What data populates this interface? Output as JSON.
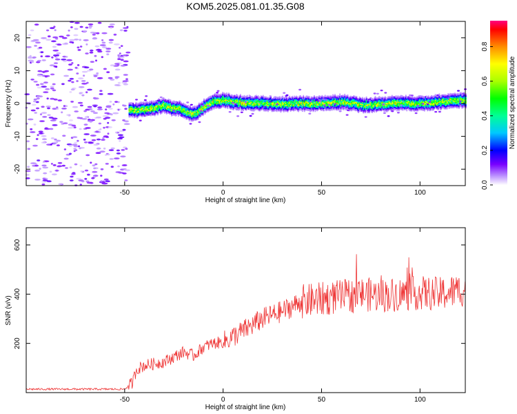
{
  "figure": {
    "title": "KOM5.2025.081.01.35.G08"
  },
  "chart_data": [
    {
      "type": "heatmap",
      "xlabel": "Height of straight line (km)",
      "ylabel": "Frequency (Hz)",
      "xlim": [
        -100,
        123
      ],
      "ylim": [
        -25,
        25
      ],
      "x_ticks": [
        -50,
        0,
        50,
        100
      ],
      "y_ticks": [
        -20,
        -10,
        0,
        10,
        20
      ],
      "signal_start_x": -48,
      "ridge_center_hz": [
        [
          -48,
          -2
        ],
        [
          -42,
          -2
        ],
        [
          -36,
          -1.5
        ],
        [
          -30,
          -0.5
        ],
        [
          -26,
          -1.5
        ],
        [
          -22,
          -1.5
        ],
        [
          -18,
          -3
        ],
        [
          -14,
          -3
        ],
        [
          -10,
          -1
        ],
        [
          -5,
          0.5
        ],
        [
          0,
          1
        ],
        [
          5,
          0.5
        ],
        [
          10,
          0.2
        ],
        [
          20,
          0
        ],
        [
          30,
          -0.2
        ],
        [
          40,
          0
        ],
        [
          50,
          0
        ],
        [
          60,
          0.5
        ],
        [
          70,
          -0.5
        ],
        [
          80,
          -0.2
        ],
        [
          90,
          0.2
        ],
        [
          100,
          0
        ],
        [
          110,
          0.5
        ],
        [
          123,
          1
        ]
      ],
      "colorbar": {
        "label": "Normalized spectral amplitude",
        "range": [
          0,
          0.95
        ],
        "ticks": [
          0.0,
          0.2,
          0.4,
          0.6,
          0.8
        ]
      }
    },
    {
      "type": "line",
      "xlabel": "Height of straight line (km)",
      "ylabel": "SNR (v/v)",
      "xlim": [
        -100,
        123
      ],
      "ylim": [
        0,
        670
      ],
      "x_ticks": [
        -50,
        0,
        50,
        100
      ],
      "y_ticks": [
        200,
        400,
        600
      ],
      "series": [
        {
          "color": "#ee3333",
          "trend": [
            [
              -100,
              14
            ],
            [
              -60,
              14
            ],
            [
              -50,
              14
            ],
            [
              -46,
              40
            ],
            [
              -44,
              95
            ],
            [
              -40,
              110
            ],
            [
              -30,
              125
            ],
            [
              -20,
              165
            ],
            [
              -15,
              150
            ],
            [
              -10,
              185
            ],
            [
              -5,
              200
            ],
            [
              0,
              205
            ],
            [
              10,
              250
            ],
            [
              20,
              300
            ],
            [
              30,
              330
            ],
            [
              40,
              370
            ],
            [
              50,
              380
            ],
            [
              60,
              390
            ],
            [
              70,
              400
            ],
            [
              80,
              395
            ],
            [
              90,
              400
            ],
            [
              100,
              405
            ],
            [
              110,
              400
            ],
            [
              123,
              420
            ]
          ]
        }
      ]
    }
  ]
}
